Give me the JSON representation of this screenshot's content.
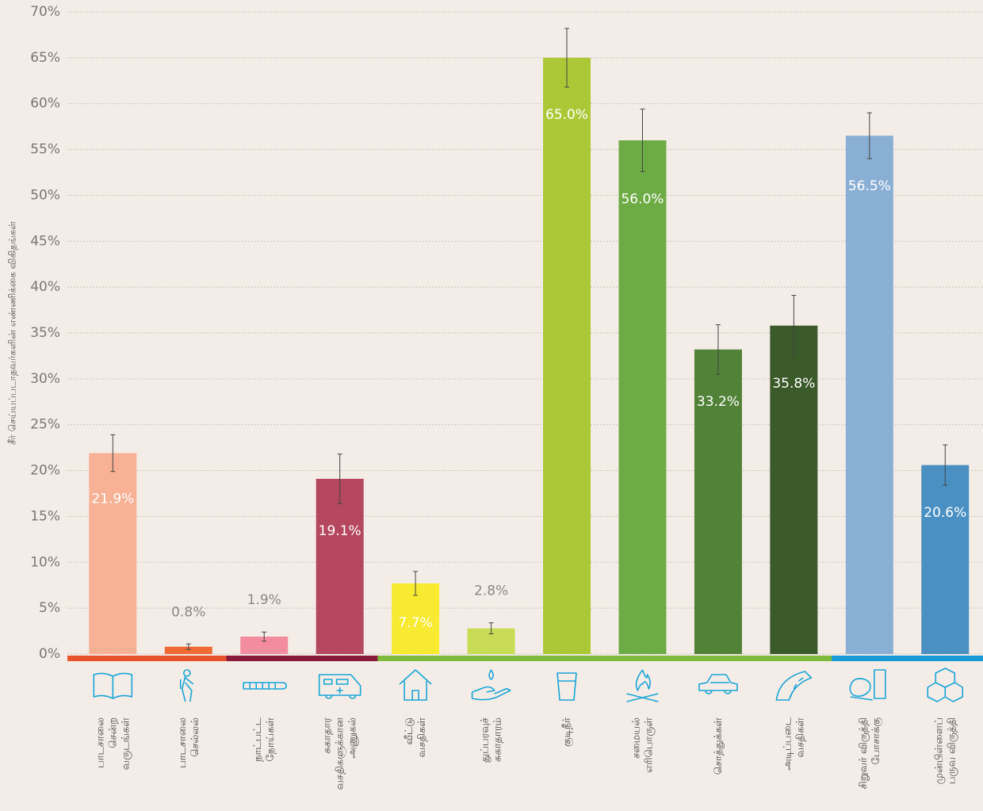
{
  "chart_data": {
    "type": "bar",
    "y_label": "சீர் செய்யப்படாதவர்களின் எண்ணிக்கை விகிதங்கள்",
    "categories": [
      [
        "பாடசாலை",
        "சென்ற",
        "வருடங்கள்"
      ],
      [
        "பாடசாலை",
        "செல்லல்"
      ],
      [
        "நாட்பட்ட",
        "நோய்கள்"
      ],
      [
        "சுகாதார",
        "வசதிகளுக்கான",
        "அணுகல்"
      ],
      [
        "வீட்டு",
        "வசதிகள்"
      ],
      [
        "துப்பரவுச்",
        "சுகாதாரம்"
      ],
      [
        "குடிநீர்"
      ],
      [
        "சமையல்",
        "எரிபொருள்"
      ],
      [
        "சொத்துக்கள்"
      ],
      [
        "அடிப்படை",
        "வசதிகள்"
      ],
      [
        "சிறுவர் விருத்தி",
        "போசாக்கு"
      ],
      [
        "முன்பிள்ளைப்",
        "பருவ விருத்தி"
      ]
    ],
    "values": [
      21.9,
      0.8,
      1.9,
      19.1,
      7.7,
      2.8,
      65.0,
      56.0,
      33.2,
      35.8,
      56.5,
      20.6
    ],
    "value_labels": [
      "21.9%",
      "0.8%",
      "1.9%",
      "19.1%",
      "7.7%",
      "2.8%",
      "65.0%",
      "56.0%",
      "33.2%",
      "35.8%",
      "56.5%",
      "20.6%"
    ],
    "errors": [
      2.0,
      0.3,
      0.5,
      2.7,
      1.3,
      0.6,
      3.2,
      3.4,
      2.7,
      3.3,
      2.5,
      2.2
    ],
    "colors": [
      "#f8b195",
      "#f06a35",
      "#f48ca0",
      "#b5485f",
      "#f7ea31",
      "#c9dc55",
      "#acc837",
      "#6dab44",
      "#528238",
      "#3a5a2a",
      "#8aafd4",
      "#4a90c2"
    ],
    "baseline_colors": [
      "#e8532b",
      "#e8532b",
      "#8b1a3a",
      "#8b1a3a",
      "#7dba3d",
      "#7dba3d",
      "#7dba3d",
      "#7dba3d",
      "#7dba3d",
      "#7dba3d",
      "#1a9ad6",
      "#1a9ad6"
    ],
    "icon_color": "#1aa5d8",
    "ylim": [
      0,
      70
    ],
    "yticks": [
      {
        "value": 0,
        "label": "0%"
      },
      {
        "value": 5,
        "label": "5%"
      },
      {
        "value": 10,
        "label": "10%"
      },
      {
        "value": 15,
        "label": "15%"
      },
      {
        "value": 20,
        "label": "20%"
      },
      {
        "value": 25,
        "label": "25%"
      },
      {
        "value": 30,
        "label": "30%"
      },
      {
        "value": 35,
        "label": "35%"
      },
      {
        "value": 40,
        "label": "40%"
      },
      {
        "value": 45,
        "label": "45%"
      },
      {
        "value": 50,
        "label": "50%"
      },
      {
        "value": 55,
        "label": "55%"
      },
      {
        "value": 60,
        "label": "60%"
      },
      {
        "value": 65,
        "label": "65%"
      },
      {
        "value": 70,
        "label": "70%"
      }
    ],
    "grid": true
  }
}
